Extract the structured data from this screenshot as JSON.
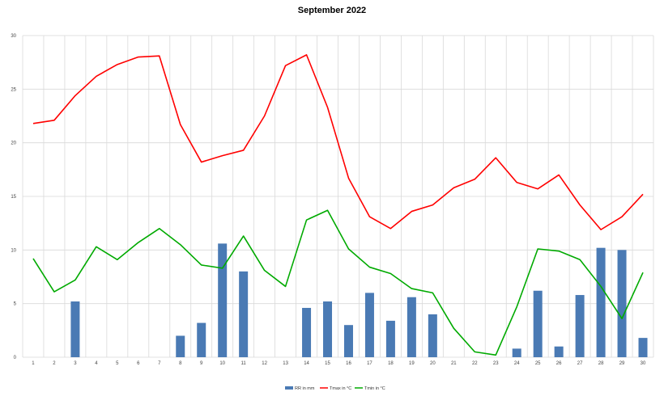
{
  "chart_data": {
    "type": "bar",
    "title": "September 2022",
    "xlabel": "",
    "ylabel": "",
    "categories": [
      "1",
      "2",
      "3",
      "4",
      "5",
      "6",
      "7",
      "8",
      "9",
      "10",
      "11",
      "12",
      "13",
      "14",
      "15",
      "16",
      "17",
      "18",
      "19",
      "20",
      "21",
      "22",
      "23",
      "24",
      "25",
      "26",
      "27",
      "28",
      "29",
      "30"
    ],
    "ylim": [
      0,
      30
    ],
    "yticks": [
      0,
      5,
      10,
      15,
      20,
      25,
      30
    ],
    "grid": true,
    "legend_position": "bottom",
    "series": [
      {
        "name": "RR in mm",
        "kind": "bar",
        "color": "#4a7ab4",
        "values": [
          0,
          0,
          5.2,
          0,
          0,
          0,
          0,
          2.0,
          3.2,
          10.6,
          8.0,
          0,
          0,
          4.6,
          5.2,
          3.0,
          6.0,
          3.4,
          5.6,
          4.0,
          0,
          0,
          0,
          0.8,
          6.2,
          1.0,
          5.8,
          10.2,
          10.0,
          1.8
        ]
      },
      {
        "name": "Tmax in °C",
        "kind": "line",
        "color": "#ff0000",
        "values": [
          21.8,
          22.1,
          24.4,
          26.2,
          27.3,
          28.0,
          28.1,
          21.7,
          18.2,
          18.8,
          19.3,
          22.5,
          27.2,
          28.2,
          23.3,
          16.7,
          13.1,
          12.0,
          13.6,
          14.2,
          15.8,
          16.6,
          18.6,
          16.3,
          15.7,
          17.0,
          14.2,
          11.9,
          13.1,
          15.2
        ]
      },
      {
        "name": "Tmin in °C",
        "kind": "line",
        "color": "#00aa00",
        "values": [
          9.2,
          6.1,
          7.2,
          10.3,
          9.1,
          10.7,
          12.0,
          10.5,
          8.6,
          8.3,
          11.3,
          8.1,
          6.6,
          12.8,
          13.7,
          10.1,
          8.4,
          7.8,
          6.4,
          6.0,
          2.7,
          0.5,
          0.2,
          4.7,
          10.1,
          9.9,
          9.1,
          6.6,
          3.6,
          7.9
        ]
      }
    ]
  }
}
